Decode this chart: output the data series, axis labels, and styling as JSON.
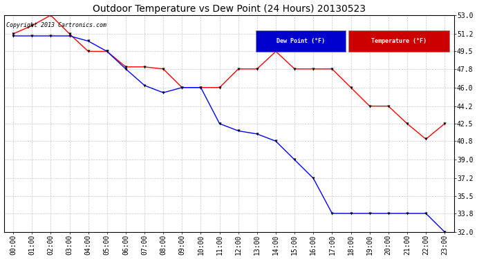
{
  "title": "Outdoor Temperature vs Dew Point (24 Hours) 20130523",
  "copyright": "Copyright 2013 Cartronics.com",
  "x_labels": [
    "00:00",
    "01:00",
    "02:00",
    "03:00",
    "04:00",
    "05:00",
    "06:00",
    "07:00",
    "08:00",
    "09:00",
    "10:00",
    "11:00",
    "12:00",
    "13:00",
    "14:00",
    "15:00",
    "16:00",
    "17:00",
    "18:00",
    "19:00",
    "20:00",
    "21:00",
    "22:00",
    "23:00"
  ],
  "temperature": [
    51.2,
    52.0,
    53.0,
    51.2,
    49.5,
    49.5,
    48.0,
    48.0,
    47.8,
    46.0,
    46.0,
    46.0,
    47.8,
    47.8,
    49.5,
    47.8,
    47.8,
    47.8,
    46.0,
    44.2,
    44.2,
    42.5,
    41.0,
    42.5
  ],
  "dew_point": [
    51.0,
    51.0,
    51.0,
    51.0,
    50.5,
    49.5,
    47.8,
    46.2,
    45.5,
    46.0,
    46.0,
    42.5,
    41.8,
    41.5,
    40.8,
    39.0,
    37.2,
    33.8,
    33.8,
    33.8,
    33.8,
    33.8,
    33.8,
    32.0
  ],
  "temp_color": "#ff0000",
  "dew_color": "#0000ff",
  "background_color": "#ffffff",
  "grid_color": "#c8c8c8",
  "ylim_min": 32.0,
  "ylim_max": 53.0,
  "yticks": [
    32.0,
    33.8,
    35.5,
    37.2,
    39.0,
    40.8,
    42.5,
    44.2,
    46.0,
    47.8,
    49.5,
    51.2,
    53.0
  ],
  "legend_dew_bg": "#0000cc",
  "legend_temp_bg": "#cc0000",
  "legend_text_color": "#ffffff",
  "title_fontsize": 10,
  "tick_fontsize": 7,
  "copyright_fontsize": 6
}
